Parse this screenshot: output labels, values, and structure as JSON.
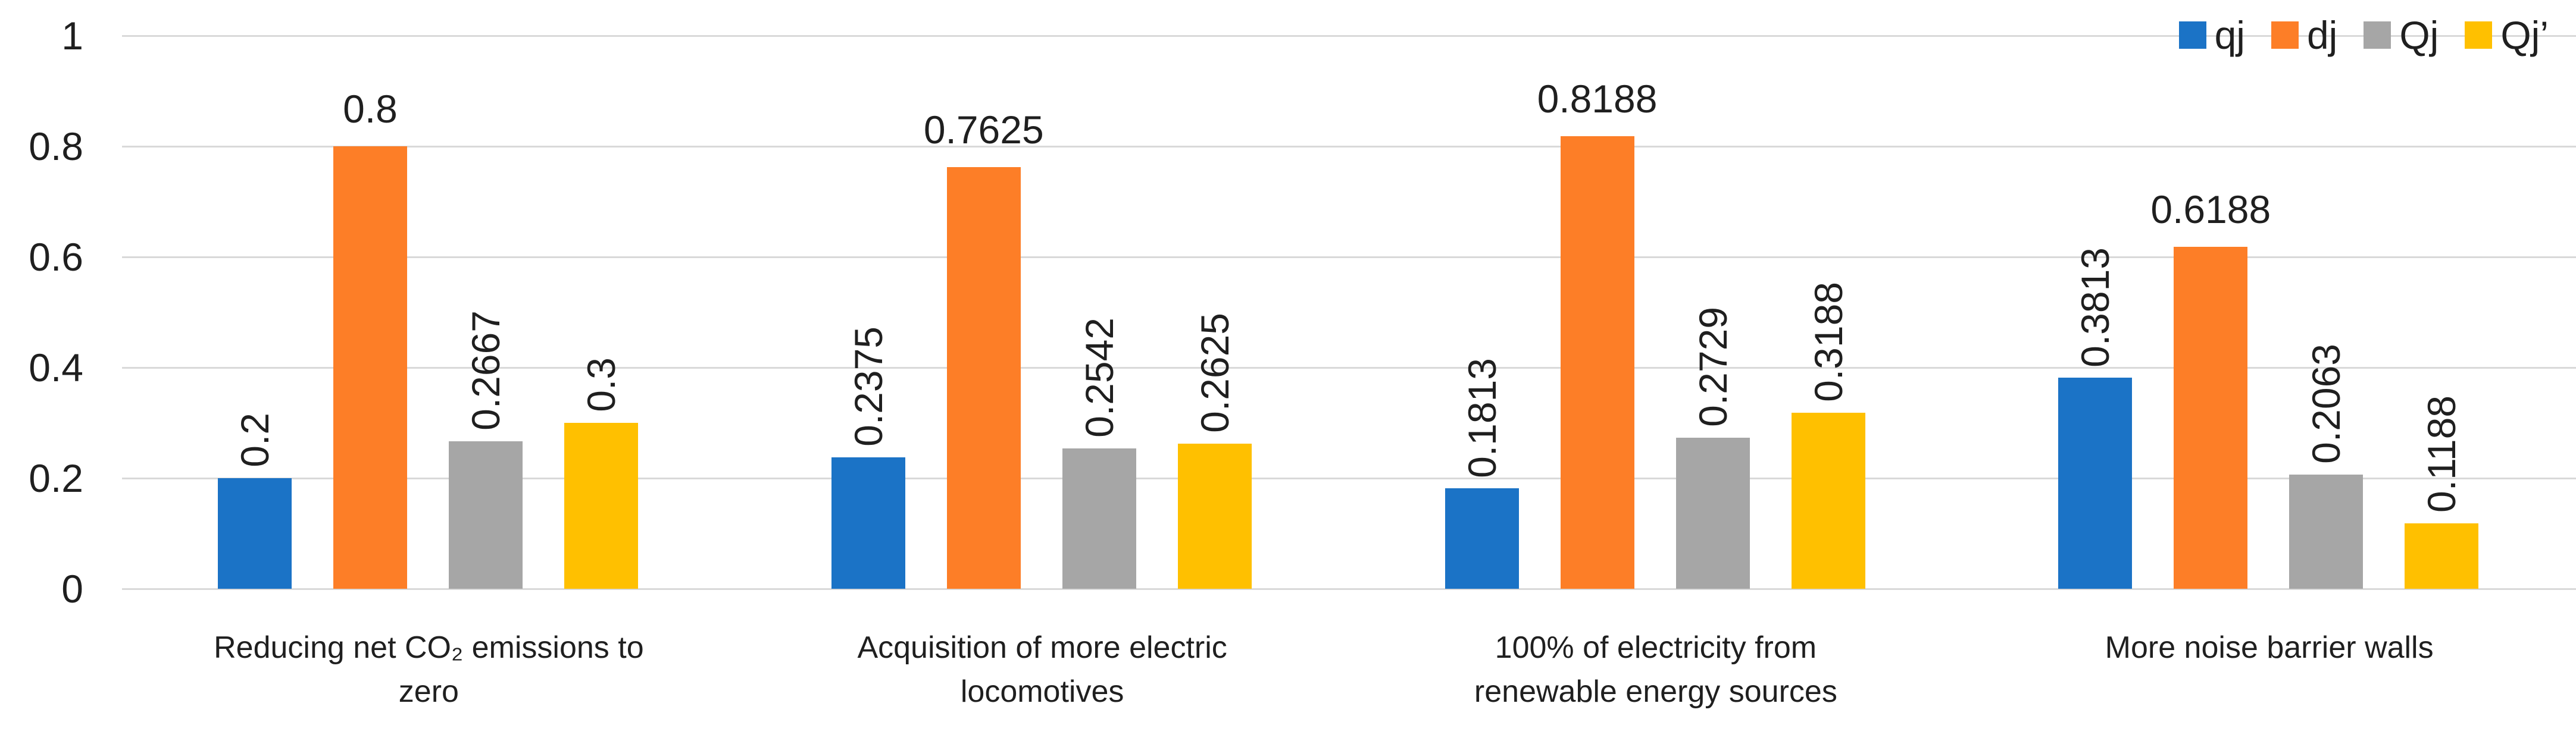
{
  "chart_data": {
    "type": "bar",
    "title": "",
    "xlabel": "",
    "ylabel": "",
    "categories": [
      "Reducing net CO₂ emissions to\nzero",
      "Acquisition of more electric\nlocomotives",
      "100% of electricity from\nrenewable energy sources",
      "More noise barrier walls"
    ],
    "series": [
      {
        "name": "qj",
        "color": "#1B73C6",
        "values": [
          0.2,
          0.2375,
          0.1813,
          0.3813
        ],
        "data_labels": [
          "0.2",
          "0.2375",
          "0.1813",
          "0.3813"
        ],
        "label_orientation": "vertical"
      },
      {
        "name": "dj",
        "color": "#FD7E27",
        "values": [
          0.8,
          0.7625,
          0.8188,
          0.6188
        ],
        "data_labels": [
          "0.8",
          "0.7625",
          "0.8188",
          "0.6188"
        ],
        "label_orientation": "horizontal"
      },
      {
        "name": "Qj",
        "color": "#A6A6A6",
        "values": [
          0.2667,
          0.2542,
          0.2729,
          0.2063
        ],
        "data_labels": [
          "0.2667",
          "0.2542",
          "0.2729",
          "0.2063"
        ],
        "label_orientation": "vertical"
      },
      {
        "name": "Qj’",
        "color": "#FFC000",
        "values": [
          0.3,
          0.2625,
          0.3188,
          0.1188
        ],
        "data_labels": [
          "0.3",
          "0.2625",
          "0.3188",
          "0.1188"
        ],
        "label_orientation": "vertical"
      }
    ],
    "y_axis": {
      "min": 0,
      "max": 1,
      "tick_values": [
        1,
        0.8,
        0.6,
        0.4,
        0.2,
        0
      ],
      "tick_labels": [
        "1",
        "0.8",
        "0.6",
        "0.4",
        "0.2",
        "0"
      ]
    },
    "grid": true,
    "gridline_color": "#D9D9D9",
    "text_color": "#1F1F1F",
    "background": "#FFFFFF",
    "legend_position": "top-right",
    "legend_labels": [
      "qj",
      "dj",
      "Qj",
      "Qj’"
    ]
  }
}
